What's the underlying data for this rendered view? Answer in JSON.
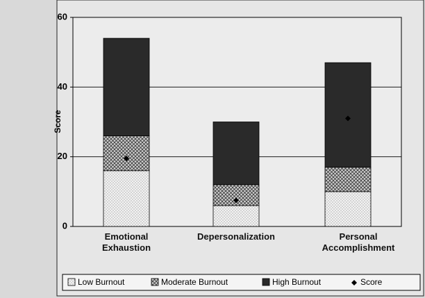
{
  "chart_data": {
    "type": "stacked_bar",
    "y_label": "Score",
    "categories": [
      "Emotional Exhaustion",
      "Depersonalization",
      "Personal Accomplishment"
    ],
    "series": [
      {
        "name": "Low Burnout",
        "color": "#f2f2f2",
        "values": [
          16,
          6,
          10
        ]
      },
      {
        "name": "Moderate Burnout",
        "color": "#cfcfcf",
        "values": [
          10,
          6,
          7
        ]
      },
      {
        "name": "High Burnout",
        "color": "#2a2a2a",
        "values": [
          28,
          18,
          30
        ]
      }
    ],
    "score": {
      "name": "Score",
      "color": "#000000",
      "values": [
        19.5,
        7.5,
        31
      ]
    },
    "ylim": [
      0,
      60
    ],
    "yticks": [
      0,
      20,
      40,
      60
    ],
    "grid": true,
    "legend": "bottom"
  }
}
